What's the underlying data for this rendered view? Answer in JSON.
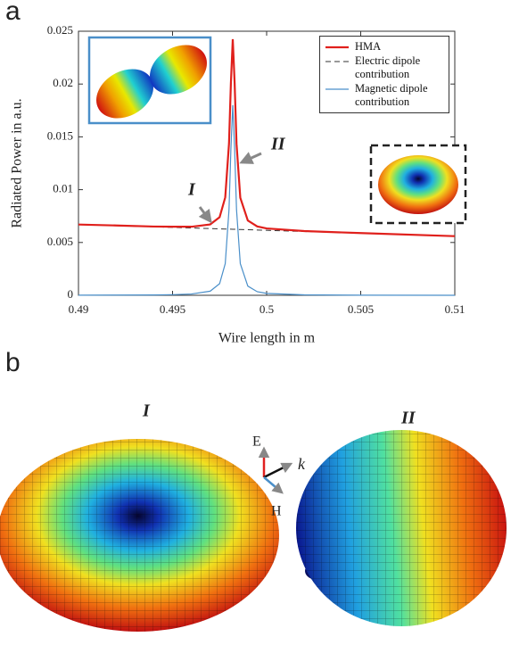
{
  "panel_labels": [
    "a",
    "b"
  ],
  "chart_data": {
    "type": "line",
    "xlabel": "Wire length in m",
    "ylabel": "Radiated Power in a.u.",
    "x": [
      0.49,
      0.492,
      0.494,
      0.495,
      0.496,
      0.497,
      0.4975,
      0.4978,
      0.498,
      0.4981,
      0.4982,
      0.4983,
      0.4984,
      0.4986,
      0.499,
      0.4995,
      0.5,
      0.502,
      0.505,
      0.51
    ],
    "series": [
      {
        "name": "HMA",
        "color": "#e0201c",
        "width": 2.2,
        "dash": "solid",
        "values": [
          0.0067,
          0.00661,
          0.00651,
          0.00649,
          0.00649,
          0.00671,
          0.00739,
          0.00927,
          0.01436,
          0.02006,
          0.02425,
          0.02006,
          0.01434,
          0.00923,
          0.00708,
          0.00652,
          0.00633,
          0.00608,
          0.00589,
          0.0056
        ]
      },
      {
        "name": "Electric dipole contribution",
        "color": "#333333",
        "width": 1,
        "dash": "dashed",
        "values": [
          0.0067,
          0.00659,
          0.00648,
          0.00643,
          0.00637,
          0.00632,
          0.00629,
          0.00627,
          0.00626,
          0.00626,
          0.00625,
          0.00625,
          0.00624,
          0.00623,
          0.00621,
          0.00618,
          0.00615,
          0.00604,
          0.00588,
          0.0056
        ]
      },
      {
        "name": "Magnetic dipole contribution",
        "color": "#4a8fc9",
        "width": 1.2,
        "dash": "solid",
        "values": [
          1e-05,
          2e-05,
          3e-05,
          6e-05,
          0.00012,
          0.00039,
          0.0011,
          0.003,
          0.0081,
          0.0138,
          0.018,
          0.0138,
          0.0081,
          0.003,
          0.00087,
          0.00034,
          0.00018,
          4e-05,
          1e-05,
          0
        ]
      }
    ],
    "xlim": [
      0.49,
      0.51
    ],
    "xticks": [
      0.49,
      0.495,
      0.5,
      0.505,
      0.51
    ],
    "ylim": [
      0,
      0.025
    ],
    "yticks": [
      0,
      0.005,
      0.01,
      0.015,
      0.02,
      0.025
    ],
    "grid": false,
    "legend": "upper right",
    "annotations": [
      "I",
      "II"
    ]
  },
  "panel_b": {
    "titles": [
      "I",
      "II"
    ],
    "axis_labels": [
      "E",
      "k",
      "H"
    ]
  }
}
